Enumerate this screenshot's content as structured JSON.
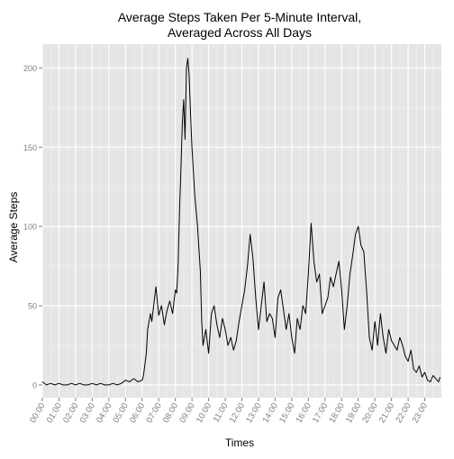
{
  "chart_data": {
    "type": "line",
    "title_line1": "Average Steps Taken Per 5-Minute Interval,",
    "title_line2": "Averaged Across All Days",
    "xlabel": "Times",
    "ylabel": "Average Steps",
    "grid": true,
    "panel_color": "#e5e5e5",
    "line_color": "#000000",
    "ylim": [
      -8,
      215
    ],
    "xlim_hours": [
      0,
      24
    ],
    "y_ticks": [
      0,
      50,
      100,
      150,
      200
    ],
    "x_ticks": [
      "00:00",
      "01:00",
      "02:00",
      "03:00",
      "04:00",
      "05:00",
      "06:00",
      "07:00",
      "08:00",
      "09:00",
      "10:00",
      "11:00",
      "12:00",
      "13:00",
      "14:00",
      "15:00",
      "16:00",
      "17:00",
      "18:00",
      "19:00",
      "20:00",
      "21:00",
      "22:00",
      "23:00"
    ],
    "series": [
      {
        "x": [
          "00:00",
          "00:15",
          "00:30",
          "00:45",
          "01:00",
          "01:15",
          "01:30",
          "01:45",
          "02:00",
          "02:15",
          "02:30",
          "02:45",
          "03:00",
          "03:15",
          "03:30",
          "03:45",
          "04:00",
          "04:15",
          "04:30",
          "04:45",
          "05:00",
          "05:15",
          "05:30",
          "05:45",
          "06:00",
          "06:05",
          "06:15",
          "06:20",
          "06:30",
          "06:35",
          "06:45",
          "06:50",
          "07:00",
          "07:10",
          "07:20",
          "07:30",
          "07:40",
          "07:50",
          "08:00",
          "08:05",
          "08:10",
          "08:15",
          "08:20",
          "08:25",
          "08:30",
          "08:35",
          "08:40",
          "08:45",
          "08:50",
          "08:55",
          "09:00",
          "09:10",
          "09:20",
          "09:30",
          "09:35",
          "09:40",
          "09:50",
          "10:00",
          "10:10",
          "10:20",
          "10:30",
          "10:40",
          "10:50",
          "11:00",
          "11:10",
          "11:20",
          "11:30",
          "11:40",
          "11:50",
          "12:00",
          "12:10",
          "12:20",
          "12:30",
          "12:40",
          "12:50",
          "13:00",
          "13:10",
          "13:20",
          "13:30",
          "13:40",
          "13:50",
          "14:00",
          "14:10",
          "14:20",
          "14:30",
          "14:40",
          "14:50",
          "15:00",
          "15:10",
          "15:20",
          "15:30",
          "15:40",
          "15:45",
          "15:50",
          "16:00",
          "16:10",
          "16:20",
          "16:30",
          "16:40",
          "16:50",
          "17:00",
          "17:10",
          "17:20",
          "17:30",
          "17:40",
          "17:50",
          "18:00",
          "18:10",
          "18:20",
          "18:30",
          "18:40",
          "18:50",
          "19:00",
          "19:10",
          "19:20",
          "19:30",
          "19:40",
          "19:50",
          "20:00",
          "20:10",
          "20:20",
          "20:30",
          "20:40",
          "20:50",
          "21:00",
          "21:10",
          "21:20",
          "21:30",
          "21:40",
          "21:50",
          "22:00",
          "22:10",
          "22:20",
          "22:30",
          "22:40",
          "22:50",
          "23:00",
          "23:10",
          "23:20",
          "23:30",
          "23:40",
          "23:50",
          "23:55"
        ],
        "y": [
          2,
          0,
          1,
          0,
          1,
          0,
          0,
          1,
          0,
          1,
          0,
          0,
          1,
          0,
          1,
          0,
          0,
          1,
          0,
          1,
          3,
          2,
          4,
          2,
          3,
          6,
          20,
          35,
          45,
          40,
          55,
          62,
          44,
          50,
          38,
          47,
          53,
          45,
          60,
          58,
          75,
          110,
          135,
          165,
          180,
          155,
          200,
          206,
          195,
          170,
          150,
          120,
          100,
          72,
          40,
          25,
          35,
          20,
          45,
          50,
          38,
          30,
          42,
          35,
          25,
          30,
          22,
          28,
          40,
          50,
          60,
          75,
          95,
          80,
          55,
          35,
          50,
          65,
          40,
          45,
          42,
          30,
          55,
          60,
          48,
          35,
          45,
          30,
          20,
          42,
          35,
          50,
          48,
          45,
          70,
          102,
          78,
          65,
          70,
          45,
          50,
          55,
          68,
          62,
          70,
          78,
          60,
          35,
          50,
          70,
          82,
          95,
          100,
          88,
          84,
          60,
          30,
          22,
          40,
          25,
          45,
          30,
          20,
          35,
          28,
          25,
          22,
          30,
          25,
          18,
          15,
          22,
          10,
          8,
          12,
          5,
          8,
          3,
          2,
          6,
          4,
          2,
          5
        ]
      }
    ]
  }
}
